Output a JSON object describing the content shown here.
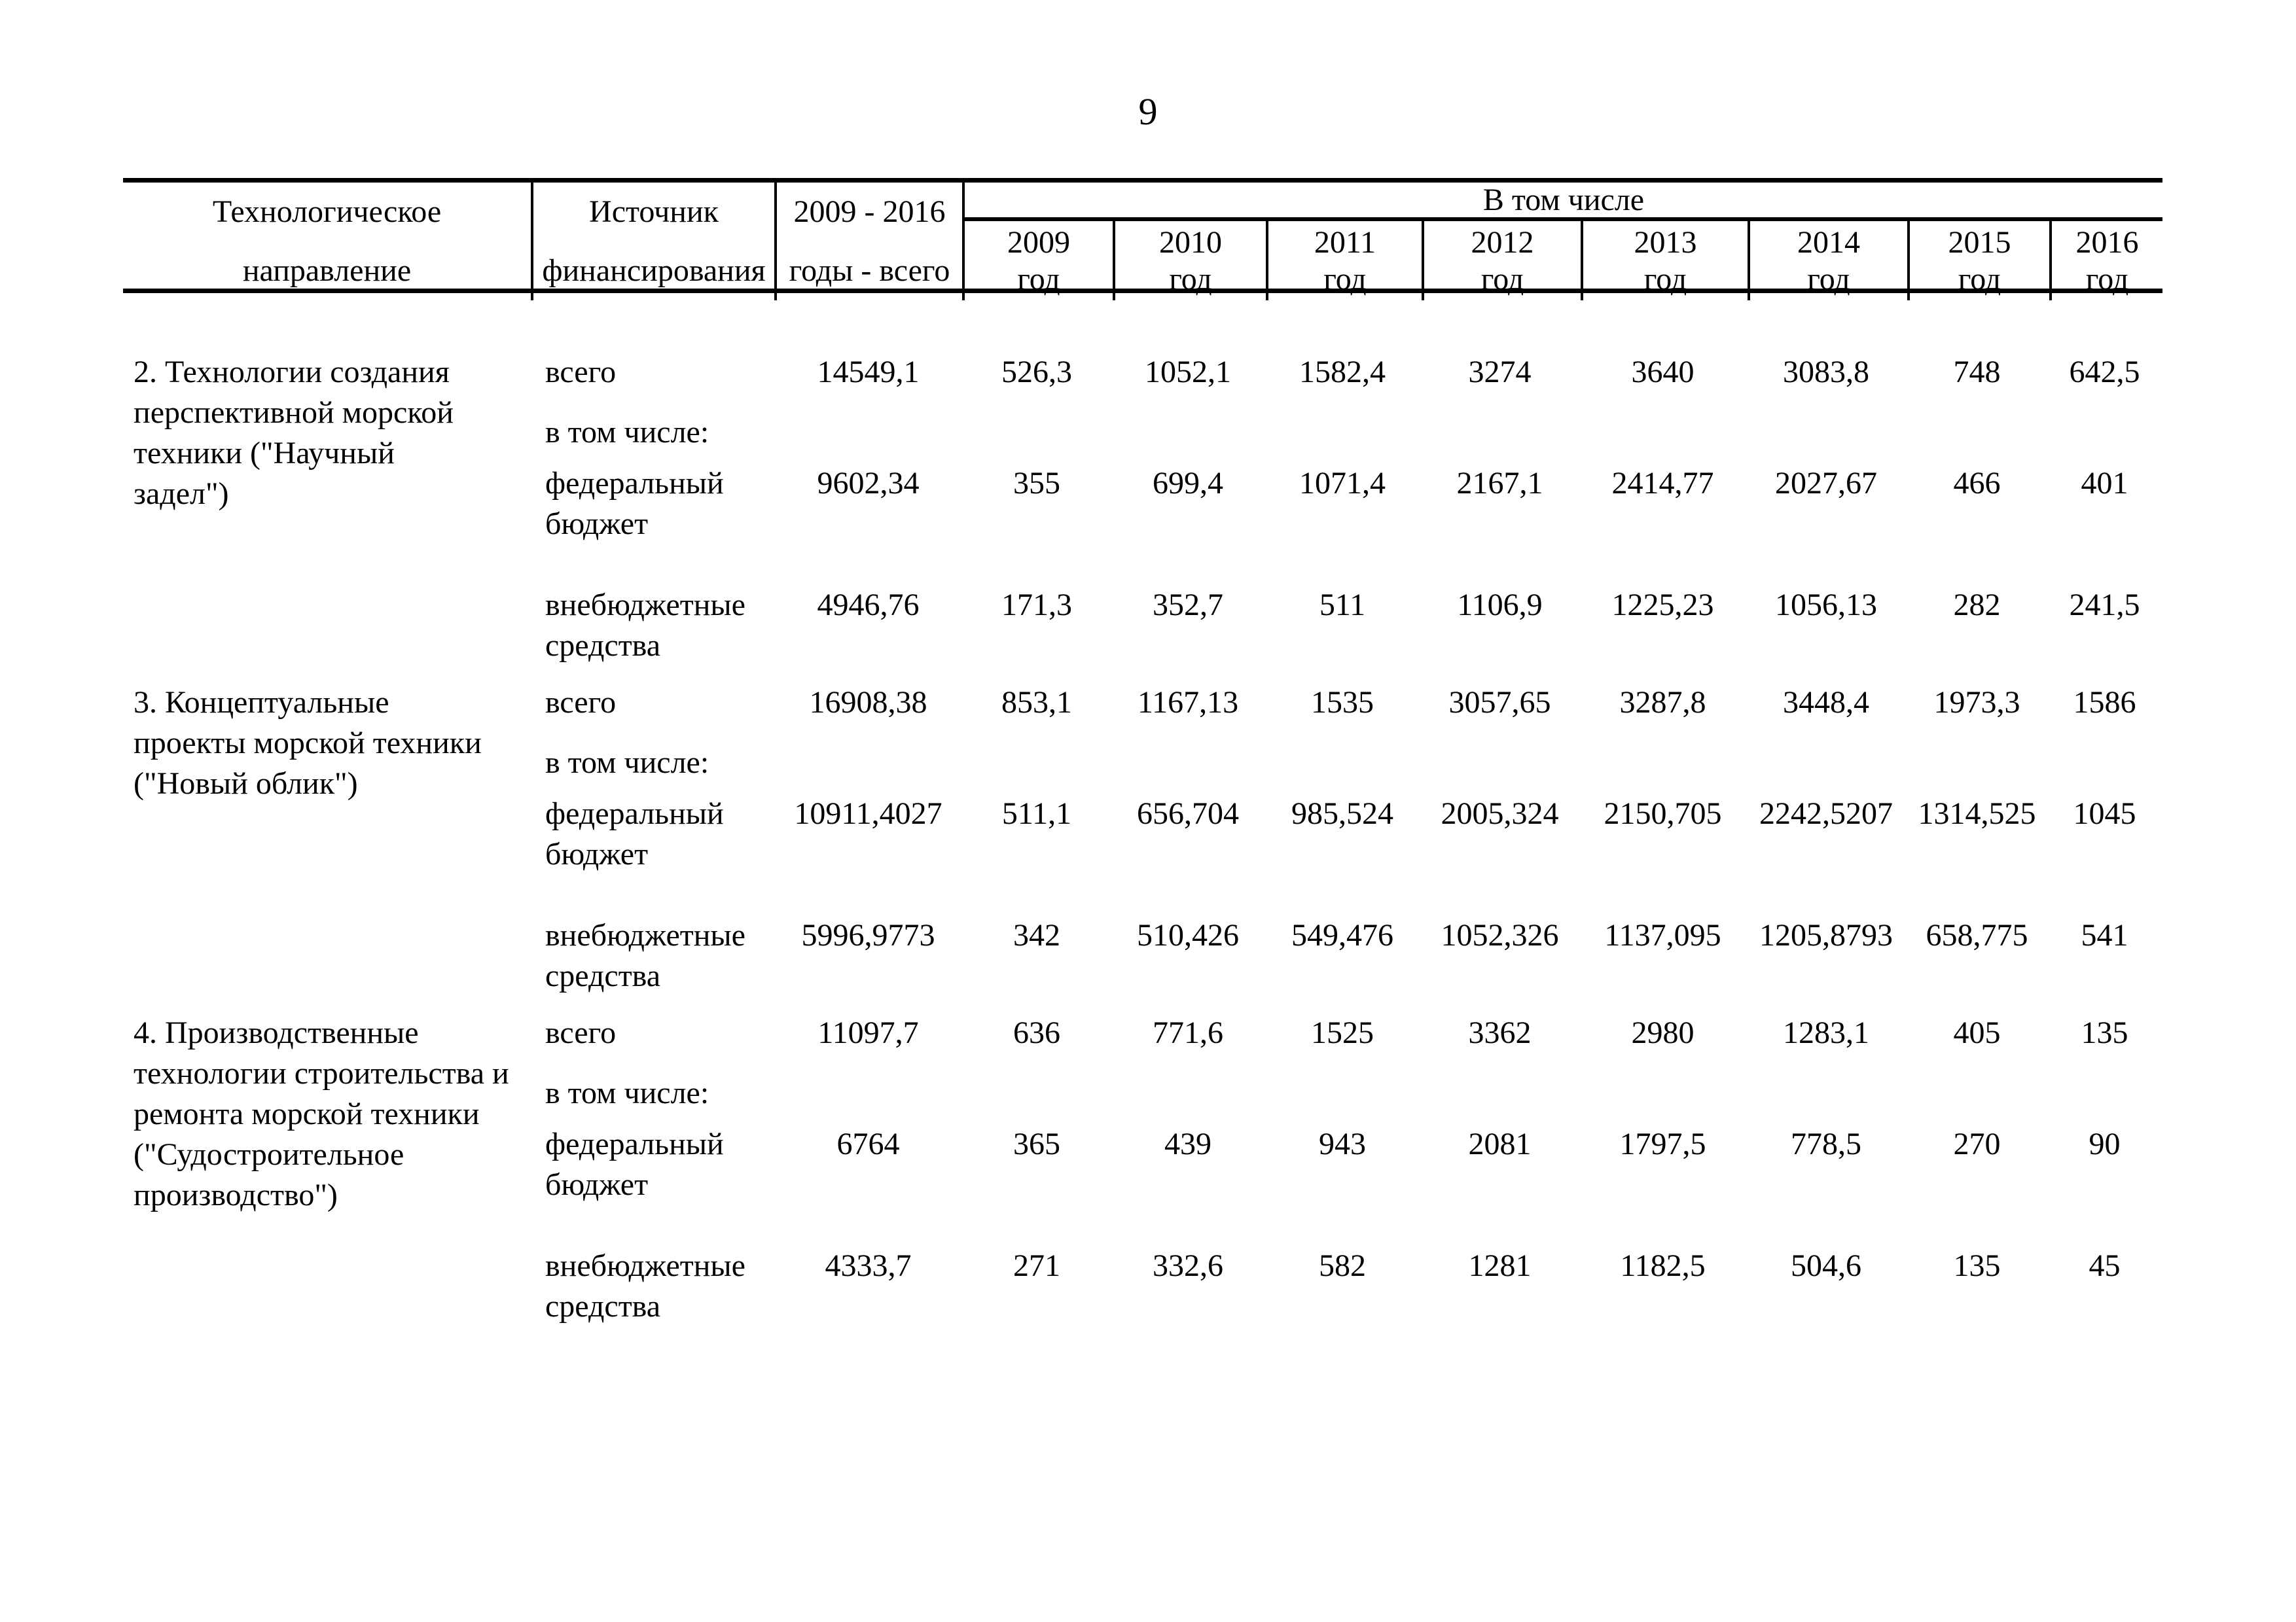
{
  "page": {
    "number": "9"
  },
  "table": {
    "header": {
      "direction": "Технологическое\nнаправление",
      "source": "Источник\nфинансирования",
      "total": "2009 - 2016\nгоды - всего",
      "including": "В том числе",
      "years": [
        "2009\nгод",
        "2010\nгод",
        "2011\nгод",
        "2012\nгод",
        "2013\nгод",
        "2014\nгод",
        "2015\nгод",
        "2016\nгод"
      ]
    },
    "labels": {
      "total": "всего",
      "including": "в том числе:",
      "federal": "федеральный\nбюджет",
      "extra": "внебюджетные\nсредства"
    },
    "groups": [
      {
        "name": "2. Технологии создания\nперспективной морской\nтехники (\"Научный\nзадел\")",
        "total": [
          "14549,1",
          "526,3",
          "1052,1",
          "1582,4",
          "3274",
          "3640",
          "3083,8",
          "748",
          "642,5"
        ],
        "federal": [
          "9602,34",
          "355",
          "699,4",
          "1071,4",
          "2167,1",
          "2414,77",
          "2027,67",
          "466",
          "401"
        ],
        "extra": [
          "4946,76",
          "171,3",
          "352,7",
          "511",
          "1106,9",
          "1225,23",
          "1056,13",
          "282",
          "241,5"
        ]
      },
      {
        "name": "3. Концептуальные\nпроекты морской техники\n(\"Новый облик\")",
        "total": [
          "16908,38",
          "853,1",
          "1167,13",
          "1535",
          "3057,65",
          "3287,8",
          "3448,4",
          "1973,3",
          "1586"
        ],
        "federal": [
          "10911,4027",
          "511,1",
          "656,704",
          "985,524",
          "2005,324",
          "2150,705",
          "2242,5207",
          "1314,525",
          "1045"
        ],
        "extra": [
          "5996,9773",
          "342",
          "510,426",
          "549,476",
          "1052,326",
          "1137,095",
          "1205,8793",
          "658,775",
          "541"
        ]
      },
      {
        "name": "4. Производственные\nтехнологии строительства и\nремонта морской техники\n(\"Судостроительное\nпроизводство\")",
        "total": [
          "11097,7",
          "636",
          "771,6",
          "1525",
          "3362",
          "2980",
          "1283,1",
          "405",
          "135"
        ],
        "federal": [
          "6764",
          "365",
          "439",
          "943",
          "2081",
          "1797,5",
          "778,5",
          "270",
          "90"
        ],
        "extra": [
          "4333,7",
          "271",
          "332,6",
          "582",
          "1281",
          "1182,5",
          "504,6",
          "135",
          "45"
        ]
      }
    ]
  }
}
